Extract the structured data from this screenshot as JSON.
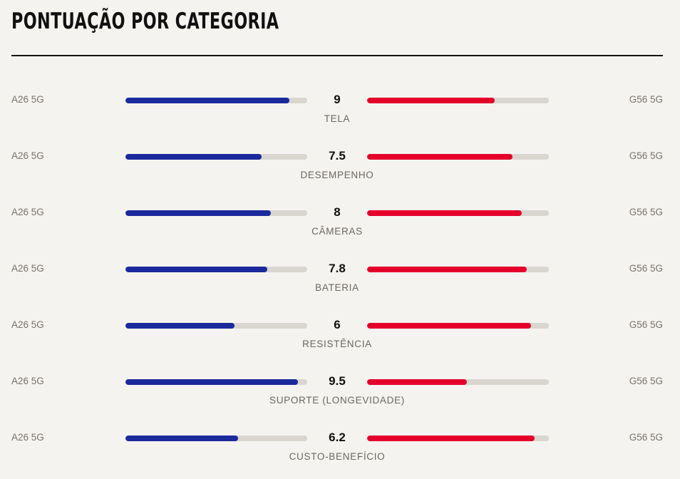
{
  "title": "PONTUAÇÃO POR CATEGORIA",
  "chart_data": {
    "type": "bar",
    "title": "PONTUAÇÃO POR CATEGORIA",
    "left_device": "A26 5G",
    "right_device": "G56 5G",
    "left_color": "#1a2a9c",
    "right_color": "#e4002b",
    "track_color": "#d9d6cf",
    "max_value": 10,
    "rows": [
      {
        "category": "TELA",
        "score": "9",
        "left_value": 9.0,
        "right_value": 7.0
      },
      {
        "category": "DESEMPENHO",
        "score": "7.5",
        "left_value": 7.5,
        "right_value": 8.0
      },
      {
        "category": "CÂMERAS",
        "score": "8",
        "left_value": 8.0,
        "right_value": 8.5
      },
      {
        "category": "BATERIA",
        "score": "7.8",
        "left_value": 7.8,
        "right_value": 8.8
      },
      {
        "category": "RESISTÊNCIA",
        "score": "6",
        "left_value": 6.0,
        "right_value": 9.0
      },
      {
        "category": "SUPORTE (LONGEVIDADE)",
        "score": "9.5",
        "left_value": 9.5,
        "right_value": 5.5
      },
      {
        "category": "CUSTO-BENEFÍCIO",
        "score": "6.2",
        "left_value": 6.2,
        "right_value": 9.2
      }
    ]
  }
}
